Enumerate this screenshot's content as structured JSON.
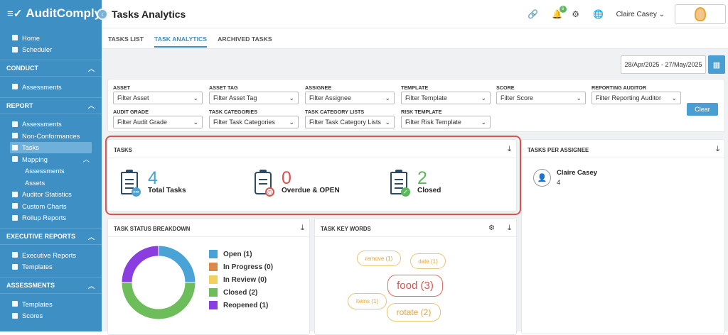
{
  "app": {
    "logo_text": "AuditComply",
    "page_title": "Tasks Analytics"
  },
  "sidebar": {
    "top_items": [
      {
        "label": "Home"
      },
      {
        "label": "Scheduler"
      }
    ],
    "sections": [
      {
        "title": "CONDUCT",
        "items": [
          {
            "label": "Assessments"
          }
        ]
      },
      {
        "title": "REPORT",
        "items": [
          {
            "label": "Assessments"
          },
          {
            "label": "Non-Conformances"
          },
          {
            "label": "Tasks"
          },
          {
            "label": "Mapping"
          },
          {
            "label": "Assessments"
          },
          {
            "label": "Assets"
          },
          {
            "label": "Auditor Statistics"
          },
          {
            "label": "Custom Charts"
          },
          {
            "label": "Rollup Reports"
          }
        ]
      },
      {
        "title": "EXECUTIVE REPORTS",
        "items": [
          {
            "label": "Executive Reports"
          },
          {
            "label": "Templates"
          }
        ]
      },
      {
        "title": "ASSESSMENTS",
        "items": [
          {
            "label": "Templates"
          },
          {
            "label": "Scores"
          }
        ]
      }
    ]
  },
  "header": {
    "notification_count": "6",
    "user_name": "Claire Casey"
  },
  "tabs": [
    {
      "label": "TASKS LIST"
    },
    {
      "label": "TASK ANALYTICS"
    },
    {
      "label": "ARCHIVED TASKS"
    }
  ],
  "date_range": "28/Apr/2025 - 27/May/2025",
  "filters": [
    {
      "label": "ASSET",
      "placeholder": "Filter Asset"
    },
    {
      "label": "ASSET TAG",
      "placeholder": "Filter Asset Tag"
    },
    {
      "label": "ASSIGNEE",
      "placeholder": "Filter Assignee"
    },
    {
      "label": "TEMPLATE",
      "placeholder": "Filter Template"
    },
    {
      "label": "SCORE",
      "placeholder": "Filter Score"
    },
    {
      "label": "REPORTING AUDITOR",
      "placeholder": "Filter Reporting Auditor"
    },
    {
      "label": "AUDIT GRADE",
      "placeholder": "Filter Audit Grade"
    },
    {
      "label": "TASK CATEGORIES",
      "placeholder": "Filter Task Categories"
    },
    {
      "label": "TASK CATEGORY LISTS",
      "placeholder": "Filter Task Category Lists"
    },
    {
      "label": "RISK TEMPLATE",
      "placeholder": "Filter Risk Template"
    }
  ],
  "clear_label": "Clear",
  "tasks_panel": {
    "title": "TASKS",
    "stats": [
      {
        "value": "4",
        "label": "Total Tasks",
        "color": "#4aa3d6"
      },
      {
        "value": "0",
        "label": "Overdue & OPEN",
        "color": "#d9534f"
      },
      {
        "value": "2",
        "label": "Closed",
        "color": "#5cb85c"
      }
    ]
  },
  "assignee_panel": {
    "title": "TASKS PER ASSIGNEE",
    "user": "Claire Casey",
    "count": "4"
  },
  "status_panel": {
    "title": "TASK STATUS BREAKDOWN",
    "legend": [
      {
        "label": "Open (1)",
        "color": "#4aa3d6"
      },
      {
        "label": "In Progress (0)",
        "color": "#d9894a"
      },
      {
        "label": "In Review (0)",
        "color": "#f2d060"
      },
      {
        "label": "Closed (2)",
        "color": "#6dbd5b"
      },
      {
        "label": "Reopened (1)",
        "color": "#8a3ee0"
      }
    ]
  },
  "chart_data": {
    "type": "pie",
    "categories": [
      "Open",
      "In Progress",
      "In Review",
      "Closed",
      "Reopened"
    ],
    "values": [
      1,
      0,
      0,
      2,
      1
    ],
    "colors": [
      "#4aa3d6",
      "#d9894a",
      "#f2d060",
      "#6dbd5b",
      "#8a3ee0"
    ],
    "title": ""
  },
  "keywords_panel": {
    "title": "TASK KEY WORDS",
    "words": [
      {
        "text": "remove (1)"
      },
      {
        "text": "date (1)"
      },
      {
        "text": "food (3)"
      },
      {
        "text": "items (1)"
      },
      {
        "text": "rotate (2)"
      }
    ]
  }
}
